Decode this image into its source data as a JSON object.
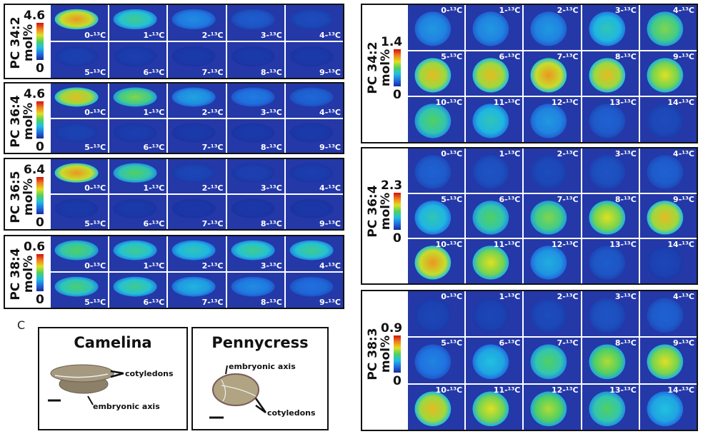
{
  "colors": {
    "background": "#2438a8",
    "border": "#111111"
  },
  "left_panels": [
    {
      "label": "PC 34:2",
      "unit": "mol%",
      "max": "4.6",
      "min": "0",
      "tiles": [
        "0-¹³C",
        "1-¹³C",
        "2-¹³C",
        "3-¹³C",
        "4-¹³C",
        "5-¹³C",
        "6-¹³C",
        "7-¹³C",
        "8-¹³C",
        "9-¹³C"
      ],
      "intensity": [
        0.85,
        0.55,
        0.32,
        0.18,
        0.12,
        0.08,
        0.07,
        0.06,
        0.06,
        0.06
      ]
    },
    {
      "label": "PC 36:4",
      "unit": "mol%",
      "max": "4.6",
      "min": "0",
      "tiles": [
        "0-¹³C",
        "1-¹³C",
        "2-¹³C",
        "3-¹³C",
        "4-¹³C",
        "5-¹³C",
        "6-¹³C",
        "7-¹³C",
        "8-¹³C",
        "9-¹³C"
      ],
      "intensity": [
        0.8,
        0.65,
        0.38,
        0.28,
        0.22,
        0.09,
        0.07,
        0.06,
        0.06,
        0.06
      ]
    },
    {
      "label": "PC 36:5",
      "unit": "mol%",
      "max": "6.4",
      "min": "0",
      "tiles": [
        "0-¹³C",
        "1-¹³C",
        "2-¹³C",
        "3-¹³C",
        "4-¹³C",
        "5-¹³C",
        "6-¹³C",
        "7-¹³C",
        "8-¹³C",
        "9-¹³C"
      ],
      "intensity": [
        0.85,
        0.6,
        0.1,
        0.08,
        0.07,
        0.06,
        0.06,
        0.05,
        0.05,
        0.05
      ]
    },
    {
      "label": "PC 38:4",
      "unit": "mol%",
      "max": "0.6",
      "min": "0",
      "tiles": [
        "0-¹³C",
        "1-¹³C",
        "2-¹³C",
        "3-¹³C",
        "4-¹³C",
        "5-¹³C",
        "6-¹³C",
        "7-¹³C",
        "8-¹³C",
        "9-¹³C"
      ],
      "intensity": [
        0.6,
        0.55,
        0.5,
        0.55,
        0.55,
        0.58,
        0.55,
        0.42,
        0.32,
        0.25
      ]
    }
  ],
  "right_panels": [
    {
      "label": "PC 34:2",
      "unit": "mol%",
      "max": "1.4",
      "min": "0",
      "tiles": [
        "0-¹³C",
        "1-¹³C",
        "2-¹³C",
        "3-¹³C",
        "4-¹³C",
        "5-¹³C",
        "6-¹³C",
        "7-¹³C",
        "8-¹³C",
        "9-¹³C",
        "10-¹³C",
        "11-¹³C",
        "12-¹³C",
        "13-¹³C",
        "14-¹³C"
      ],
      "intensity": [
        0.35,
        0.35,
        0.35,
        0.5,
        0.65,
        0.8,
        0.8,
        0.85,
        0.8,
        0.75,
        0.6,
        0.5,
        0.35,
        0.2,
        0.12
      ]
    },
    {
      "label": "PC 36:4",
      "unit": "mol%",
      "max": "2.3",
      "min": "0",
      "tiles": [
        "0-¹³C",
        "1-¹³C",
        "2-¹³C",
        "3-¹³C",
        "4-¹³C",
        "5-¹³C",
        "6-¹³C",
        "7-¹³C",
        "8-¹³C",
        "9-¹³C",
        "10-¹³C",
        "11-¹³C",
        "12-¹³C",
        "13-¹³C",
        "14-¹³C"
      ],
      "intensity": [
        0.2,
        0.15,
        0.12,
        0.15,
        0.2,
        0.5,
        0.6,
        0.65,
        0.75,
        0.8,
        0.85,
        0.75,
        0.4,
        0.18,
        0.1
      ]
    },
    {
      "label": "PC 38:3",
      "unit": "mol%",
      "max": "0.9",
      "min": "0",
      "tiles": [
        "0-¹³C",
        "1-¹³C",
        "2-¹³C",
        "3-¹³C",
        "4-¹³C",
        "5-¹³C",
        "6-¹³C",
        "7-¹³C",
        "8-¹³C",
        "9-¹³C",
        "10-¹³C",
        "11-¹³C",
        "12-¹³C",
        "13-¹³C",
        "14-¹³C"
      ],
      "intensity": [
        0.1,
        0.1,
        0.12,
        0.15,
        0.2,
        0.3,
        0.45,
        0.6,
        0.7,
        0.75,
        0.8,
        0.75,
        0.7,
        0.6,
        0.45
      ]
    }
  ],
  "section_c": {
    "letter": "C",
    "camelina": {
      "title": "Camelina",
      "cotyledons": "cotyledons",
      "axis": "embryonic axis"
    },
    "pennycress": {
      "title": "Pennycress",
      "cotyledons": "cotyledons",
      "axis": "embryonic axis"
    }
  }
}
